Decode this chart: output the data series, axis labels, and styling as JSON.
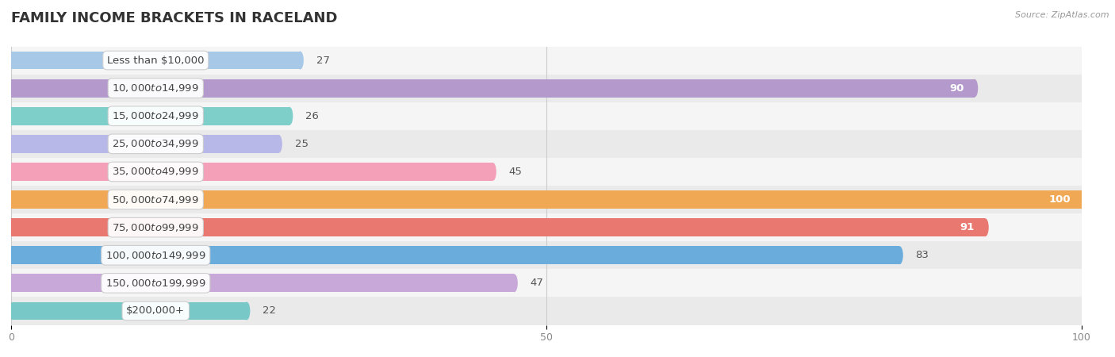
{
  "title": "Family Income Brackets in Raceland",
  "source": "Source: ZipAtlas.com",
  "categories": [
    "Less than $10,000",
    "$10,000 to $14,999",
    "$15,000 to $24,999",
    "$25,000 to $34,999",
    "$35,000 to $49,999",
    "$50,000 to $74,999",
    "$75,000 to $99,999",
    "$100,000 to $149,999",
    "$150,000 to $199,999",
    "$200,000+"
  ],
  "values": [
    27,
    90,
    26,
    25,
    45,
    100,
    91,
    83,
    47,
    22
  ],
  "bar_colors": [
    "#a8c8e8",
    "#b399cc",
    "#7ececa",
    "#b8b8e8",
    "#f4a0b8",
    "#f0a855",
    "#e87870",
    "#6aacdc",
    "#c8a8d8",
    "#78c8c8"
  ],
  "bg_row_colors": [
    "#f5f5f5",
    "#eaeaea"
  ],
  "xlim": [
    0,
    100
  ],
  "xticks": [
    0,
    50,
    100
  ],
  "title_fontsize": 13,
  "label_fontsize": 9.5,
  "value_fontsize": 9.5,
  "bar_height": 0.65
}
